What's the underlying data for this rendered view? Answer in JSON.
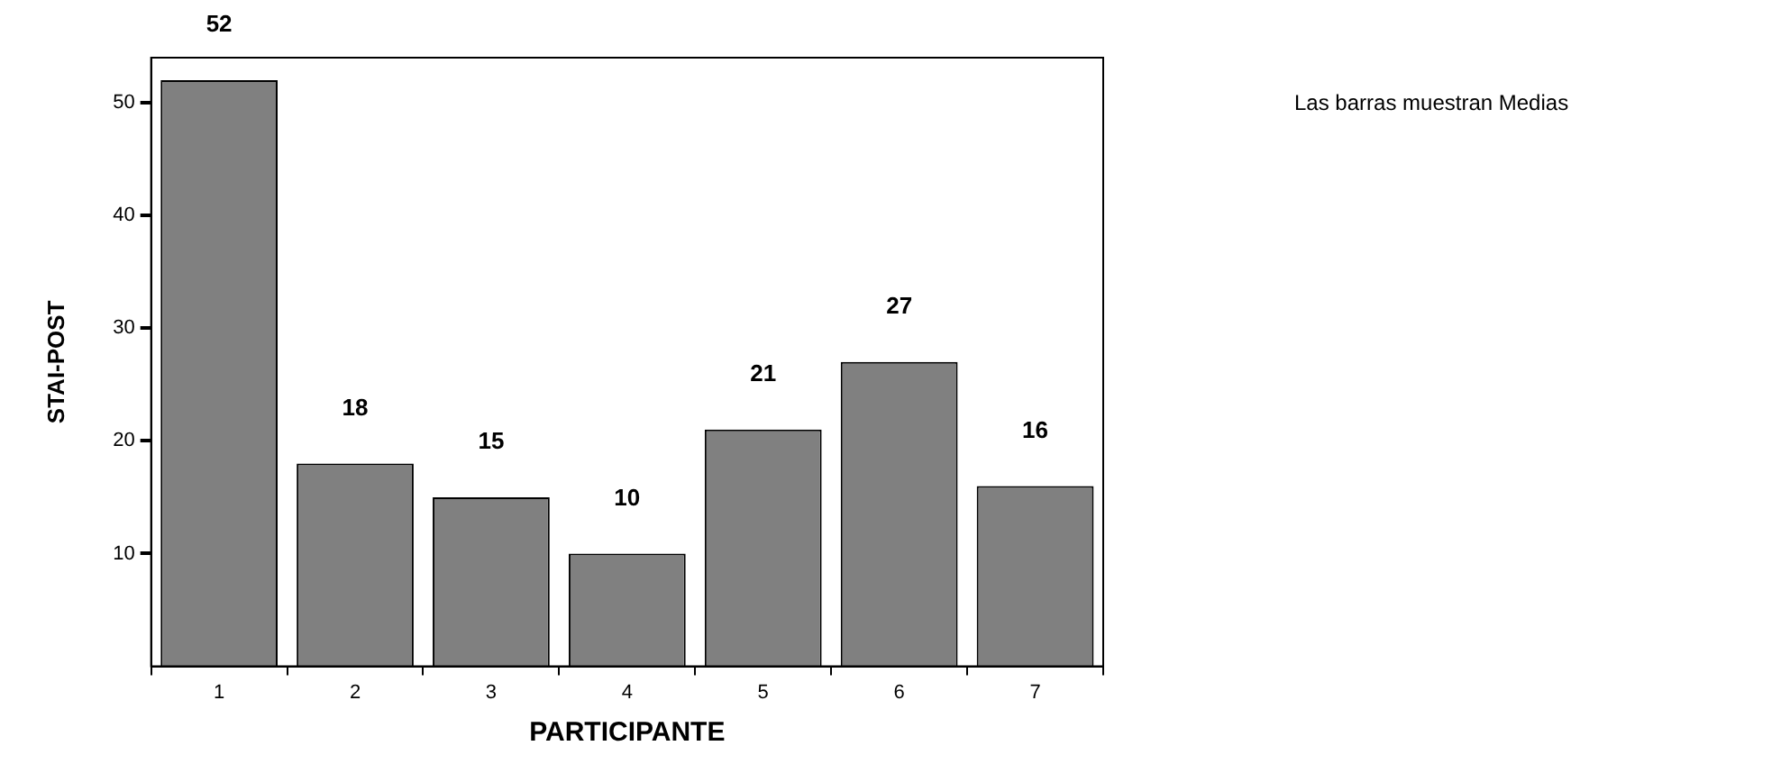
{
  "chart_data": {
    "type": "bar",
    "xlabel": "PARTICIPANTE",
    "ylabel": "STAI-POST",
    "categories": [
      "1",
      "2",
      "3",
      "4",
      "5",
      "6",
      "7"
    ],
    "values": [
      52,
      18,
      15,
      10,
      21,
      27,
      16
    ],
    "color": "#808080",
    "ylim": [
      0,
      54
    ],
    "yticks": [
      10,
      20,
      30,
      40,
      50
    ],
    "grid": false,
    "data_labels": true,
    "annotations": [
      "Las barras muestran Medias"
    ]
  }
}
